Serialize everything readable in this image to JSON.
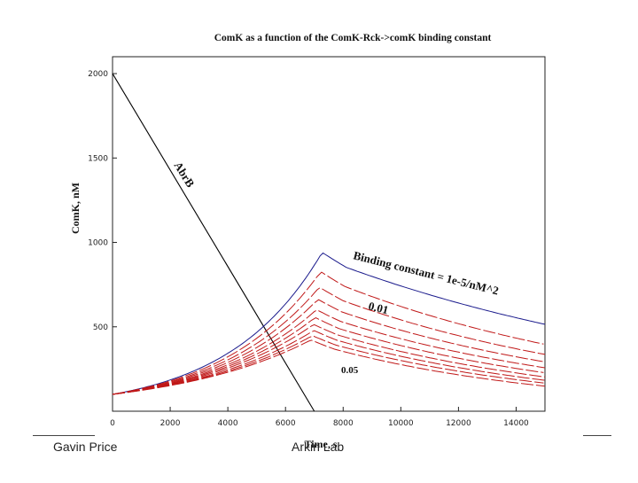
{
  "footer": {
    "left_text": "Gavin Price",
    "center_text": "Arkin Lab"
  },
  "colors": {
    "blue": "#1a1a8c",
    "red": "#c01818",
    "black": "#000000"
  },
  "chart_data": {
    "type": "line",
    "title": "ComK as a function of the ComK-Rck->comK binding constant",
    "xlabel": "Time, s",
    "ylabel": "ComK, nM",
    "xlim": [
      0,
      15000
    ],
    "ylim": [
      0,
      2100
    ],
    "xticks": [
      "0",
      "2000",
      "4000",
      "6000",
      "8000",
      "10000",
      "12000",
      "14000"
    ],
    "yticks": [
      "500",
      "1000",
      "1500",
      "2000"
    ],
    "grid": false,
    "annotations": {
      "abrb": "AbrB",
      "binding": "Binding constant = 1e-5/nM^2",
      "k001": "0.01",
      "k005": "0.05"
    },
    "series": [
      {
        "name": "AbrB",
        "color": "#000000",
        "x": [
          0,
          7000
        ],
        "y": [
          2000,
          0
        ]
      },
      {
        "name": "Binding constant = 1e-5/nM^2",
        "color": "#1a1a8c",
        "peak": 920,
        "peak_x": 7200,
        "end": 520
      },
      {
        "color": "#c01818",
        "peak": 810,
        "peak_x": 7150,
        "end": 400
      },
      {
        "name": "0.01",
        "color": "#c01818",
        "peak": 720,
        "peak_x": 7100,
        "end": 340
      },
      {
        "color": "#c01818",
        "peak": 650,
        "peak_x": 7050,
        "end": 295
      },
      {
        "color": "#c01818",
        "peak": 590,
        "peak_x": 7000,
        "end": 260
      },
      {
        "color": "#c01818",
        "peak": 545,
        "peak_x": 6950,
        "end": 230
      },
      {
        "color": "#c01818",
        "peak": 505,
        "peak_x": 6900,
        "end": 205
      },
      {
        "color": "#c01818",
        "peak": 470,
        "peak_x": 6900,
        "end": 185
      },
      {
        "color": "#c01818",
        "peak": 440,
        "peak_x": 6850,
        "end": 168
      },
      {
        "name": "0.05",
        "color": "#c01818",
        "peak": 415,
        "peak_x": 6800,
        "end": 150
      }
    ]
  }
}
